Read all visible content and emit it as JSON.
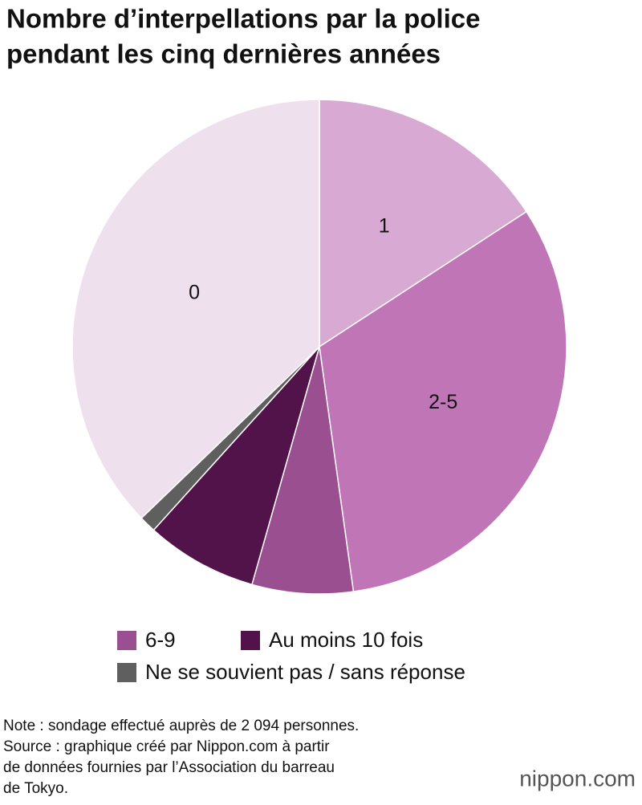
{
  "chart_data": {
    "type": "pie",
    "title": [
      "Nombre d’interpellations par la police",
      "pendant les cinq dernières années"
    ],
    "categories": [
      "1",
      "2-5",
      "6-9",
      "Au moins 10 fois",
      "Ne se souvient pas / sans réponse",
      "0"
    ],
    "values": [
      15.8,
      32,
      6.6,
      7.3,
      1.1,
      37.2
    ],
    "colors": [
      "#d8a9d2",
      "#bf75b6",
      "#9a4f91",
      "#52124a",
      "#5f5f5f",
      "#efe0ee"
    ],
    "note": "Note : sondage effectué auprès de 2 094 personnes.",
    "source": [
      "Source : graphique créé par Nippon.com à partir",
      "de données fournies par l’Association du barreau",
      "de Tokyo."
    ],
    "brand": "nippon.com"
  }
}
